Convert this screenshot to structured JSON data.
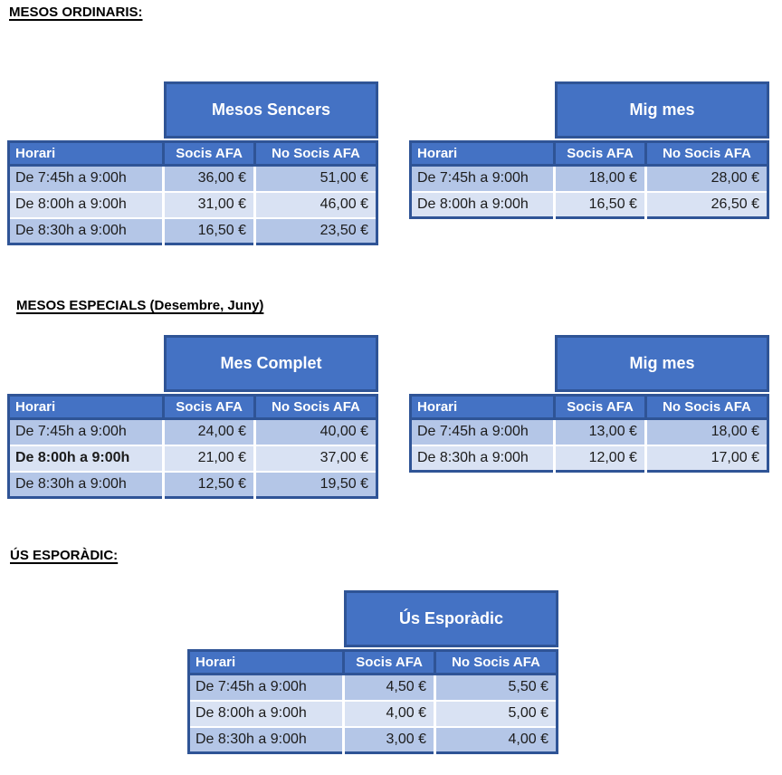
{
  "colors": {
    "accent": "#4472C4",
    "border": "#2F5496",
    "band_dark": "#B4C6E7",
    "band_light": "#D9E2F3",
    "header_text": "#FFFFFF",
    "body_text": "#1C1C1C"
  },
  "sections": [
    {
      "heading": "MESOS ORDINARIS:",
      "tables": [
        {
          "title": "Mesos Sencers",
          "columns": [
            "Horari",
            "Socis AFA",
            "No Socis AFA"
          ],
          "rows": [
            {
              "horari": "De 7:45h a 9:00h",
              "socis": "36,00 €",
              "no_socis": "51,00 €",
              "bold": false
            },
            {
              "horari": "De 8:00h a 9:00h",
              "socis": "31,00 €",
              "no_socis": "46,00 €",
              "bold": false
            },
            {
              "horari": "De 8:30h a 9:00h",
              "socis": "16,50 €",
              "no_socis": "23,50 €",
              "bold": false
            }
          ]
        },
        {
          "title": "Mig mes",
          "columns": [
            "Horari",
            "Socis AFA",
            "No Socis AFA"
          ],
          "rows": [
            {
              "horari": "De 7:45h a 9:00h",
              "socis": "18,00 €",
              "no_socis": "28,00 €",
              "bold": false
            },
            {
              "horari": "De 8:00h a 9:00h",
              "socis": "16,50 €",
              "no_socis": "26,50 €",
              "bold": false
            }
          ]
        }
      ]
    },
    {
      "heading": "MESOS ESPECIALS (Desembre, Juny)",
      "tables": [
        {
          "title": "Mes Complet",
          "columns": [
            "Horari",
            "Socis AFA",
            "No Socis AFA"
          ],
          "rows": [
            {
              "horari": "De 7:45h a 9:00h",
              "socis": "24,00 €",
              "no_socis": "40,00 €",
              "bold": false
            },
            {
              "horari": "De 8:00h a 9:00h",
              "socis": "21,00 €",
              "no_socis": "37,00 €",
              "bold": true
            },
            {
              "horari": "De 8:30h a 9:00h",
              "socis": "12,50 €",
              "no_socis": "19,50 €",
              "bold": false
            }
          ]
        },
        {
          "title": "Mig mes",
          "columns": [
            "Horari",
            "Socis AFA",
            "No Socis AFA"
          ],
          "rows": [
            {
              "horari": "De 7:45h a 9:00h",
              "socis": "13,00 €",
              "no_socis": "18,00 €",
              "bold": false
            },
            {
              "horari": "De 8:30h a 9:00h",
              "socis": "12,00 €",
              "no_socis": "17,00 €",
              "bold": false
            }
          ]
        }
      ]
    },
    {
      "heading": "ÚS ESPORÀDIC:",
      "tables": [
        {
          "title": "Ús Esporàdic",
          "columns": [
            "Horari",
            "Socis AFA",
            "No Socis AFA"
          ],
          "rows": [
            {
              "horari": "De 7:45h a 9:00h",
              "socis": "4,50 €",
              "no_socis": "5,50 €",
              "bold": false
            },
            {
              "horari": "De 8:00h a 9:00h",
              "socis": "4,00 €",
              "no_socis": "5,00 €",
              "bold": false
            },
            {
              "horari": "De 8:30h a 9:00h",
              "socis": "3,00 €",
              "no_socis": "4,00 €",
              "bold": false
            }
          ]
        }
      ]
    }
  ]
}
